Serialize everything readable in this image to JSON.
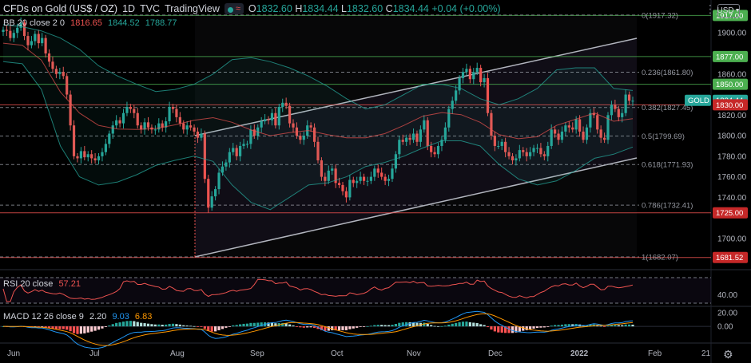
{
  "header": {
    "symbol_title": "CFDs on Gold (US$ / OZ)",
    "interval": "1D",
    "exchange": "TVC",
    "brand": "TradingView",
    "market_status_icon": "market-open-dot-icon",
    "ohlc": [
      {
        "k": "O",
        "v": "1832.60"
      },
      {
        "k": "H",
        "v": "1834.44"
      },
      {
        "k": "L",
        "v": "1832.60"
      },
      {
        "k": "C",
        "v": "1834.44"
      }
    ],
    "change": "+0.04 (+0.00%)"
  },
  "bollinger": {
    "name": "BB 20 close 2 0",
    "basis": "1816.65",
    "upper": "1844.52",
    "lower": "1788.77"
  },
  "rsi": {
    "name": "RSI 20 close",
    "value": "57.21"
  },
  "macd": {
    "name": "MACD 12 26 close 9",
    "macd": "2.20",
    "signal": "9.03",
    "hist": "6.83"
  },
  "currency_button": {
    "label": "USD",
    "icon": "chevron-down-icon"
  },
  "settings_icon": "gear-icon",
  "colors": {
    "up": "#26a69a",
    "down": "#ef5350",
    "background": "#000000",
    "fib_line": "#9598a1",
    "level_green": "#4caf50",
    "level_red": "#ef5350"
  },
  "price_axis_labels": [
    "1900.00",
    "1860.00",
    "1820.00",
    "1800.00",
    "1780.00",
    "1760.00",
    "1740.00",
    "1700.00"
  ],
  "level_tags": [
    {
      "text": "1917.00",
      "price": 1917,
      "kind": "green"
    },
    {
      "text": "1877.00",
      "price": 1877,
      "kind": "green"
    },
    {
      "text": "1850.00",
      "price": 1850,
      "kind": "green"
    },
    {
      "text": "1834.44",
      "price": 1834.44,
      "kind": "last",
      "name": "GOLD"
    },
    {
      "text": "1830.00",
      "price": 1830,
      "kind": "red"
    },
    {
      "text": "1725.00",
      "price": 1725,
      "kind": "red"
    },
    {
      "text": "1681.52",
      "price": 1681.52,
      "kind": "red"
    }
  ],
  "fib_levels": [
    {
      "label": "0(1917.32)",
      "price": 1917.32
    },
    {
      "label": "0.236(1861.80)",
      "price": 1861.8
    },
    {
      "label": "0.382(1827.45)",
      "price": 1827.45
    },
    {
      "label": "0.5(1799.69)",
      "price": 1799.69
    },
    {
      "label": "0.618(1771.93)",
      "price": 1771.93
    },
    {
      "label": "0.786(1732.41)",
      "price": 1732.41
    },
    {
      "label": "1(1682.07)",
      "price": 1682.07
    }
  ],
  "rsi_axis_labels": [
    "40.00"
  ],
  "macd_axis_labels": [
    "20.00",
    "0.00"
  ],
  "time_axis_labels": [
    "Jun",
    "Jul",
    "Aug",
    "Sep",
    "Oct",
    "Nov",
    "Dec",
    "2022",
    "Feb",
    "21"
  ],
  "chart_data": {
    "type": "line",
    "title": "CFDs on Gold (US$ / OZ)",
    "xlabel": "",
    "ylabel": "",
    "ylim": [
      1672,
      1932
    ],
    "months": [
      "Jun",
      "Jul",
      "Aug",
      "Sep",
      "Oct",
      "Nov",
      "Dec",
      "2022",
      "Feb",
      "21"
    ],
    "series": [
      {
        "name": "Close",
        "values": [
          1903,
          1902,
          1895,
          1900,
          1905,
          1910,
          1897,
          1888,
          1892,
          1899,
          1890,
          1895,
          1880,
          1872,
          1865,
          1860,
          1862,
          1858,
          1840,
          1810,
          1780,
          1778,
          1785,
          1779,
          1782,
          1778,
          1776,
          1780,
          1784,
          1792,
          1802,
          1810,
          1815,
          1812,
          1822,
          1828,
          1826,
          1822,
          1810,
          1806,
          1813,
          1808,
          1806,
          1806,
          1812,
          1808,
          1814,
          1828,
          1826,
          1818,
          1812,
          1806,
          1810,
          1808,
          1804,
          1798,
          1802,
          1758,
          1730,
          1741,
          1748,
          1764,
          1770,
          1774,
          1784,
          1788,
          1780,
          1790,
          1792,
          1792,
          1806,
          1800,
          1808,
          1814,
          1816,
          1815,
          1822,
          1810,
          1828,
          1832,
          1829,
          1812,
          1808,
          1800,
          1796,
          1800,
          1810,
          1808,
          1794,
          1776,
          1760,
          1756,
          1766,
          1768,
          1754,
          1752,
          1746,
          1740,
          1757,
          1754,
          1756,
          1760,
          1756,
          1756,
          1760,
          1768,
          1764,
          1760,
          1756,
          1758,
          1768,
          1782,
          1796,
          1794,
          1798,
          1796,
          1802,
          1794,
          1806,
          1815,
          1790,
          1784,
          1782,
          1790,
          1796,
          1808,
          1826,
          1834,
          1844,
          1856,
          1862,
          1865,
          1855,
          1862,
          1866,
          1852,
          1856,
          1822,
          1800,
          1790,
          1790,
          1794,
          1784,
          1780,
          1776,
          1778,
          1786,
          1784,
          1780,
          1784,
          1788,
          1788,
          1782,
          1780,
          1790,
          1806,
          1802,
          1796,
          1804,
          1810,
          1808,
          1806,
          1816,
          1804,
          1796,
          1808,
          1822,
          1820,
          1806,
          1798,
          1796,
          1820,
          1830,
          1826,
          1818,
          1822,
          1840,
          1834,
          1834
        ]
      },
      {
        "name": "BB Upper",
        "values": [
          1908,
          1906,
          1902,
          1895,
          1884,
          1868,
          1858,
          1850,
          1843,
          1845,
          1850,
          1860,
          1874,
          1876,
          1872,
          1866,
          1858,
          1848,
          1836,
          1826,
          1830,
          1840,
          1850,
          1850,
          1846,
          1836,
          1830,
          1836,
          1846,
          1864,
          1866,
          1866,
          1846,
          1844
        ]
      },
      {
        "name": "BB Lower",
        "values": [
          1872,
          1870,
          1845,
          1790,
          1760,
          1752,
          1755,
          1762,
          1771,
          1776,
          1780,
          1775,
          1752,
          1735,
          1728,
          1740,
          1752,
          1754,
          1760,
          1770,
          1774,
          1780,
          1788,
          1795,
          1795,
          1790,
          1772,
          1758,
          1752,
          1756,
          1766,
          1778,
          1782,
          1789
        ]
      }
    ],
    "bb_lower_label": "1788.77",
    "rsi_range": [
      0,
      100
    ],
    "macd_range": [
      -22,
      28
    ]
  }
}
